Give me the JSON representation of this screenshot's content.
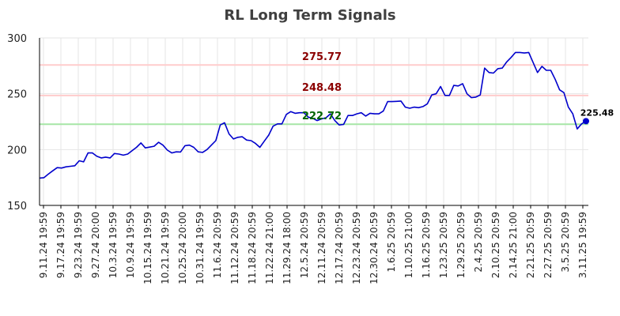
{
  "chart_data": {
    "type": "line",
    "title": "RL Long Term Signals",
    "xlabel": "",
    "ylabel": "",
    "ylim": [
      150,
      300
    ],
    "yticks": [
      150,
      200,
      250,
      300
    ],
    "xticks": [
      "9.11.24 19:59",
      "9.17.24 19:59",
      "9.23.24 19:59",
      "9.27.24 20:00",
      "10.3.24 19:59",
      "10.9.24 19:59",
      "10.15.24 19:59",
      "10.21.24 19:59",
      "10.25.24 20:00",
      "10.31.24 19:59",
      "11.6.24 20:59",
      "11.12.24 20:59",
      "11.18.24 20:59",
      "11.22.24 21:00",
      "11.29.24 18:00",
      "12.5.24 20:59",
      "12.11.24 20:59",
      "12.17.24 20:59",
      "12.23.24 20:59",
      "12.30.24 20:59",
      "1.6.25 20:59",
      "1.10.25 21:00",
      "1.16.25 20:59",
      "1.23.25 20:59",
      "1.29.25 20:59",
      "2.4.25 20:59",
      "2.10.25 20:59",
      "2.14.25 21:00",
      "2.21.25 20:59",
      "2.27.25 20:59",
      "3.5.25 20:59",
      "3.11.25 19:59"
    ],
    "grid": true,
    "series": [
      {
        "values": [
          174.5,
          174.8,
          178,
          181,
          183.8,
          183.5,
          184.5,
          185,
          185.5,
          190,
          189,
          197,
          197,
          194,
          192.5,
          193.2,
          192.5,
          196.5,
          196,
          195,
          196,
          199,
          202,
          206,
          201.5,
          202.2,
          203,
          206.5,
          204,
          199.5,
          197,
          198,
          197.8,
          203.5,
          204,
          202,
          198,
          197.5,
          200,
          204,
          208,
          222,
          224,
          214,
          209.5,
          211,
          211.5,
          208.5,
          208,
          205.5,
          202,
          207.5,
          213,
          221,
          223,
          223,
          231.5,
          234,
          232.5,
          233,
          233,
          229,
          228,
          226,
          227.5,
          228.5,
          232,
          226,
          222,
          222.5,
          230.5,
          230.5,
          232,
          233,
          230,
          232.5,
          232,
          232,
          234.5,
          243,
          243,
          243.2,
          243.5,
          238,
          237,
          238,
          237.5,
          238.5,
          241,
          249,
          250,
          256.5,
          248.5,
          248.5,
          257.5,
          257,
          259,
          250,
          246.5,
          247,
          249,
          273,
          269,
          268.5,
          272.5,
          273,
          278.5,
          282.5,
          287,
          287,
          286.5,
          287,
          278,
          269,
          274.5,
          271,
          271,
          263,
          253.5,
          251,
          238,
          232,
          218.5,
          223,
          225.48
        ],
        "color": "#0000cc"
      }
    ],
    "hlines": [
      {
        "value": 275.77,
        "label": "275.77",
        "color": "#ffcccc",
        "label_color": "#8b0000"
      },
      {
        "value": 248.48,
        "label": "248.48",
        "color": "#ffcccc",
        "label_color": "#8b0000"
      },
      {
        "value": 222.72,
        "label": "222.72",
        "color": "#a6e6a6",
        "label_color": "#006400"
      }
    ],
    "last_value_label": "225.48"
  }
}
